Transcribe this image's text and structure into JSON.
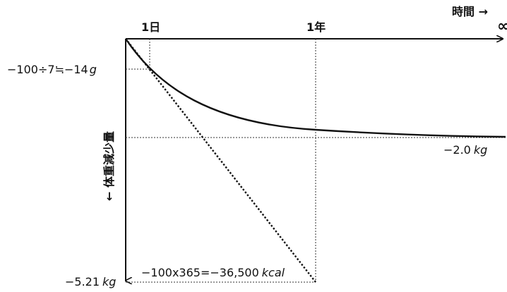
{
  "axes": {
    "x_title": "時間 →",
    "y_title": "← 体重減少量",
    "infinity_symbol": "∞"
  },
  "ticks": {
    "one_day": "1日",
    "one_year": "1年"
  },
  "labels": {
    "day_loss_prefix": "−100÷7≒−14",
    "day_loss_unit": "g",
    "asymptote_value": "−2.0",
    "asymptote_unit": "kg",
    "linear_total_value": "−5.21",
    "linear_total_unit": "kg",
    "calorie_prefix": "−100x365=−36,500",
    "calorie_unit": "kcal"
  },
  "colors": {
    "line": "#111111",
    "guide": "#333333"
  }
}
